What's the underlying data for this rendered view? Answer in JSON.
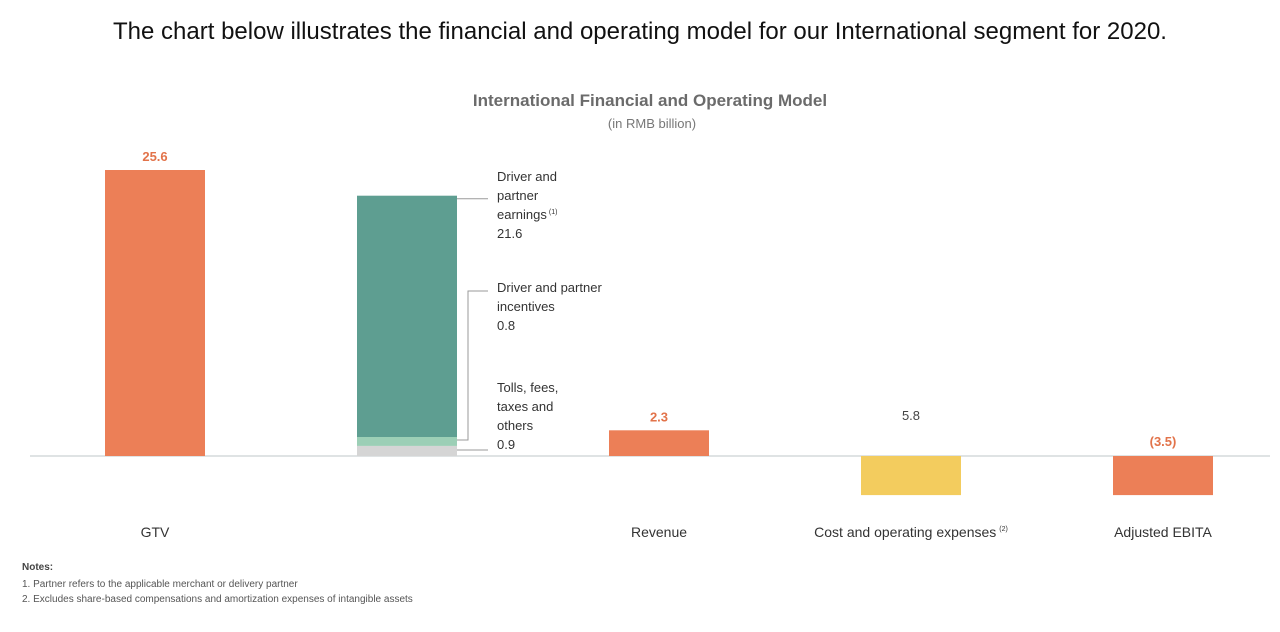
{
  "intro_text": "The chart below illustrates the financial and operating model for our International segment for 2020.",
  "colors": {
    "gtv": "#ec7f57",
    "driver_earnings": "#5e9e91",
    "incentives": "#9ccfb6",
    "tolls": "#d5d5d5",
    "revenue": "#ec7f57",
    "costs": "#f3cc5e",
    "ebita": "#ec7f57",
    "axis": "#bfc7c9"
  },
  "chart_data": {
    "type": "bar",
    "title": "International Financial and Operating Model",
    "subtitle": "(in RMB billion)",
    "categories": [
      "GTV",
      "",
      "Revenue",
      "Cost and operating expenses",
      "Adjusted EBITA"
    ],
    "category_superscripts": [
      "",
      "",
      "",
      "(2)",
      ""
    ],
    "ylim": [
      -3.5,
      25.6
    ],
    "bars": [
      {
        "category": "GTV",
        "value": 25.6,
        "label": "25.6"
      },
      {
        "category": "Revenue",
        "value": 2.3,
        "label": "2.3"
      },
      {
        "category": "Cost and operating expenses",
        "value": -3.5,
        "label": "5.8",
        "display_value": 5.8
      },
      {
        "category": "Adjusted EBITA",
        "value": -3.5,
        "label": "(3.5)"
      }
    ],
    "stack": {
      "series": [
        {
          "name_lines": [
            "Driver and",
            "partner",
            "earnings"
          ],
          "superscript": "(1)",
          "value": 21.6,
          "label": "21.6"
        },
        {
          "name_lines": [
            "Driver and partner",
            "incentives"
          ],
          "superscript": "",
          "value": 0.8,
          "label": "0.8"
        },
        {
          "name_lines": [
            "Tolls, fees,",
            "taxes and",
            "others"
          ],
          "superscript": "",
          "value": 0.9,
          "label": "0.9"
        }
      ]
    }
  },
  "notes": {
    "heading": "Notes:",
    "items": [
      "1. Partner refers to the applicable merchant or delivery partner",
      "2. Excludes share-based compensations and amortization expenses of intangible assets"
    ]
  }
}
